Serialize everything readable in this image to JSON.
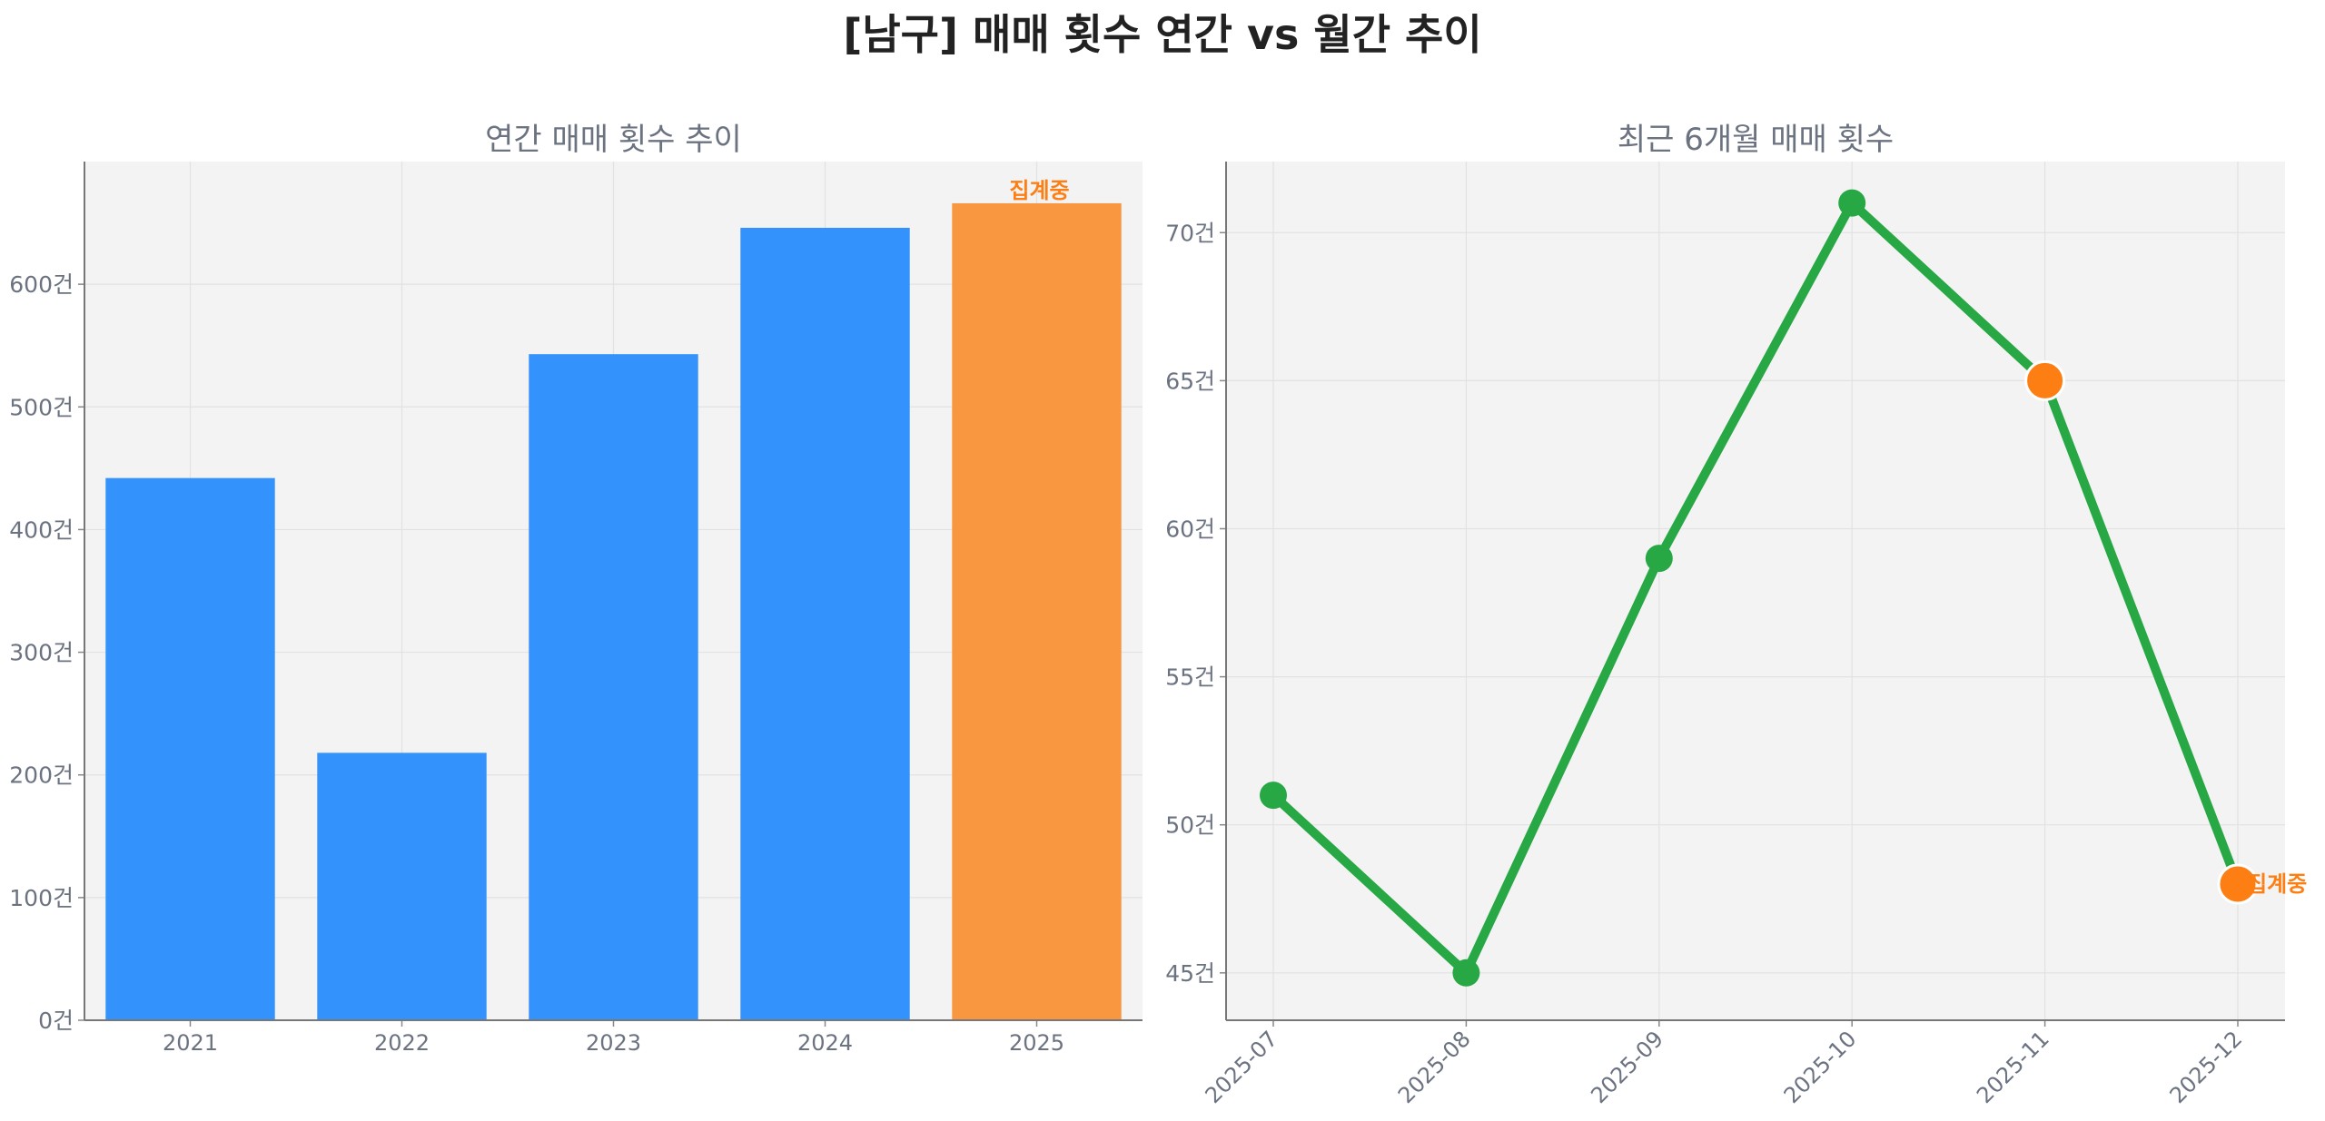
{
  "title": "[남구] 매매 횟수 연간 vs 월간 추이",
  "colors": {
    "bar": "#3392fb",
    "bar_highlight": "#f99640",
    "line": "#28a745",
    "marker_highlight": "#fd7f14",
    "note": "#fd7f14"
  },
  "chart_data": [
    {
      "type": "bar",
      "title": "연간 매매 횟수 추이",
      "categories": [
        "2021",
        "2022",
        "2023",
        "2024",
        "2025"
      ],
      "values": [
        442,
        218,
        543,
        646,
        666
      ],
      "highlight_index": 4,
      "annotation": "집계중",
      "ylim": [
        0,
        700
      ],
      "yticks": [
        0,
        100,
        200,
        300,
        400,
        500,
        600
      ],
      "ytick_labels": [
        "0건",
        "100건",
        "200건",
        "300건",
        "400건",
        "500건",
        "600건"
      ],
      "grid": true
    },
    {
      "type": "line",
      "title": "최근 6개월 매매 횟수",
      "x": [
        "2025-07",
        "2025-08",
        "2025-09",
        "2025-10",
        "2025-11",
        "2025-12"
      ],
      "values": [
        51,
        45,
        59,
        71,
        65,
        48
      ],
      "highlight_indices": [
        4,
        5
      ],
      "annotation": "집계중",
      "ylim": [
        43.4,
        72.4
      ],
      "yticks": [
        45,
        50,
        55,
        60,
        65,
        70
      ],
      "ytick_labels": [
        "45건",
        "50건",
        "55건",
        "60건",
        "65건",
        "70건"
      ],
      "grid": true
    }
  ]
}
